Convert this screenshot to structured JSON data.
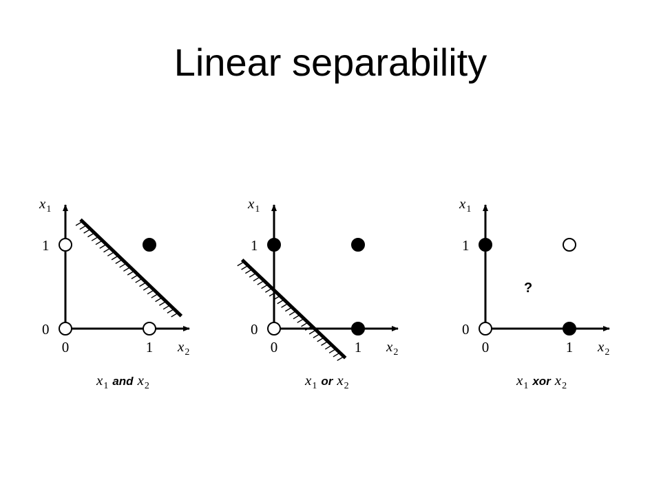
{
  "title": "Linear separability",
  "axes": {
    "vertical_var": "x",
    "vertical_sub": "1",
    "horizontal_var": "x",
    "horizontal_sub": "2",
    "tick_zero": "0",
    "tick_one": "1"
  },
  "panels": [
    {
      "id": "and",
      "caption_left_var": "x",
      "caption_left_sub": "1",
      "caption_op": "and",
      "caption_right_var": "x",
      "caption_right_sub": "2",
      "points": [
        {
          "x2": 0,
          "x1": 0,
          "filled": false
        },
        {
          "x2": 1,
          "x1": 0,
          "filled": false
        },
        {
          "x2": 0,
          "x1": 1,
          "filled": false
        },
        {
          "x2": 1,
          "x1": 1,
          "filled": true
        }
      ],
      "separator": {
        "x2_start": 0.18,
        "x1_start": 1.3,
        "x2_end": 1.38,
        "x1_end": 0.15,
        "hatch_side": "below"
      }
    },
    {
      "id": "or",
      "caption_left_var": "x",
      "caption_left_sub": "1",
      "caption_op": "or",
      "caption_right_var": "x",
      "caption_right_sub": "2",
      "points": [
        {
          "x2": 0,
          "x1": 0,
          "filled": false
        },
        {
          "x2": 1,
          "x1": 0,
          "filled": true
        },
        {
          "x2": 0,
          "x1": 1,
          "filled": true
        },
        {
          "x2": 1,
          "x1": 1,
          "filled": true
        }
      ],
      "separator": {
        "x2_start": -0.38,
        "x1_start": 0.82,
        "x2_end": 0.85,
        "x1_end": -0.35,
        "hatch_side": "below"
      }
    },
    {
      "id": "xor",
      "caption_left_var": "x",
      "caption_left_sub": "1",
      "caption_op": "xor",
      "caption_right_var": "x",
      "caption_right_sub": "2",
      "points": [
        {
          "x2": 0,
          "x1": 0,
          "filled": false
        },
        {
          "x2": 1,
          "x1": 0,
          "filled": true
        },
        {
          "x2": 0,
          "x1": 1,
          "filled": true
        },
        {
          "x2": 1,
          "x1": 1,
          "filled": false
        }
      ],
      "question_mark": "?"
    }
  ]
}
